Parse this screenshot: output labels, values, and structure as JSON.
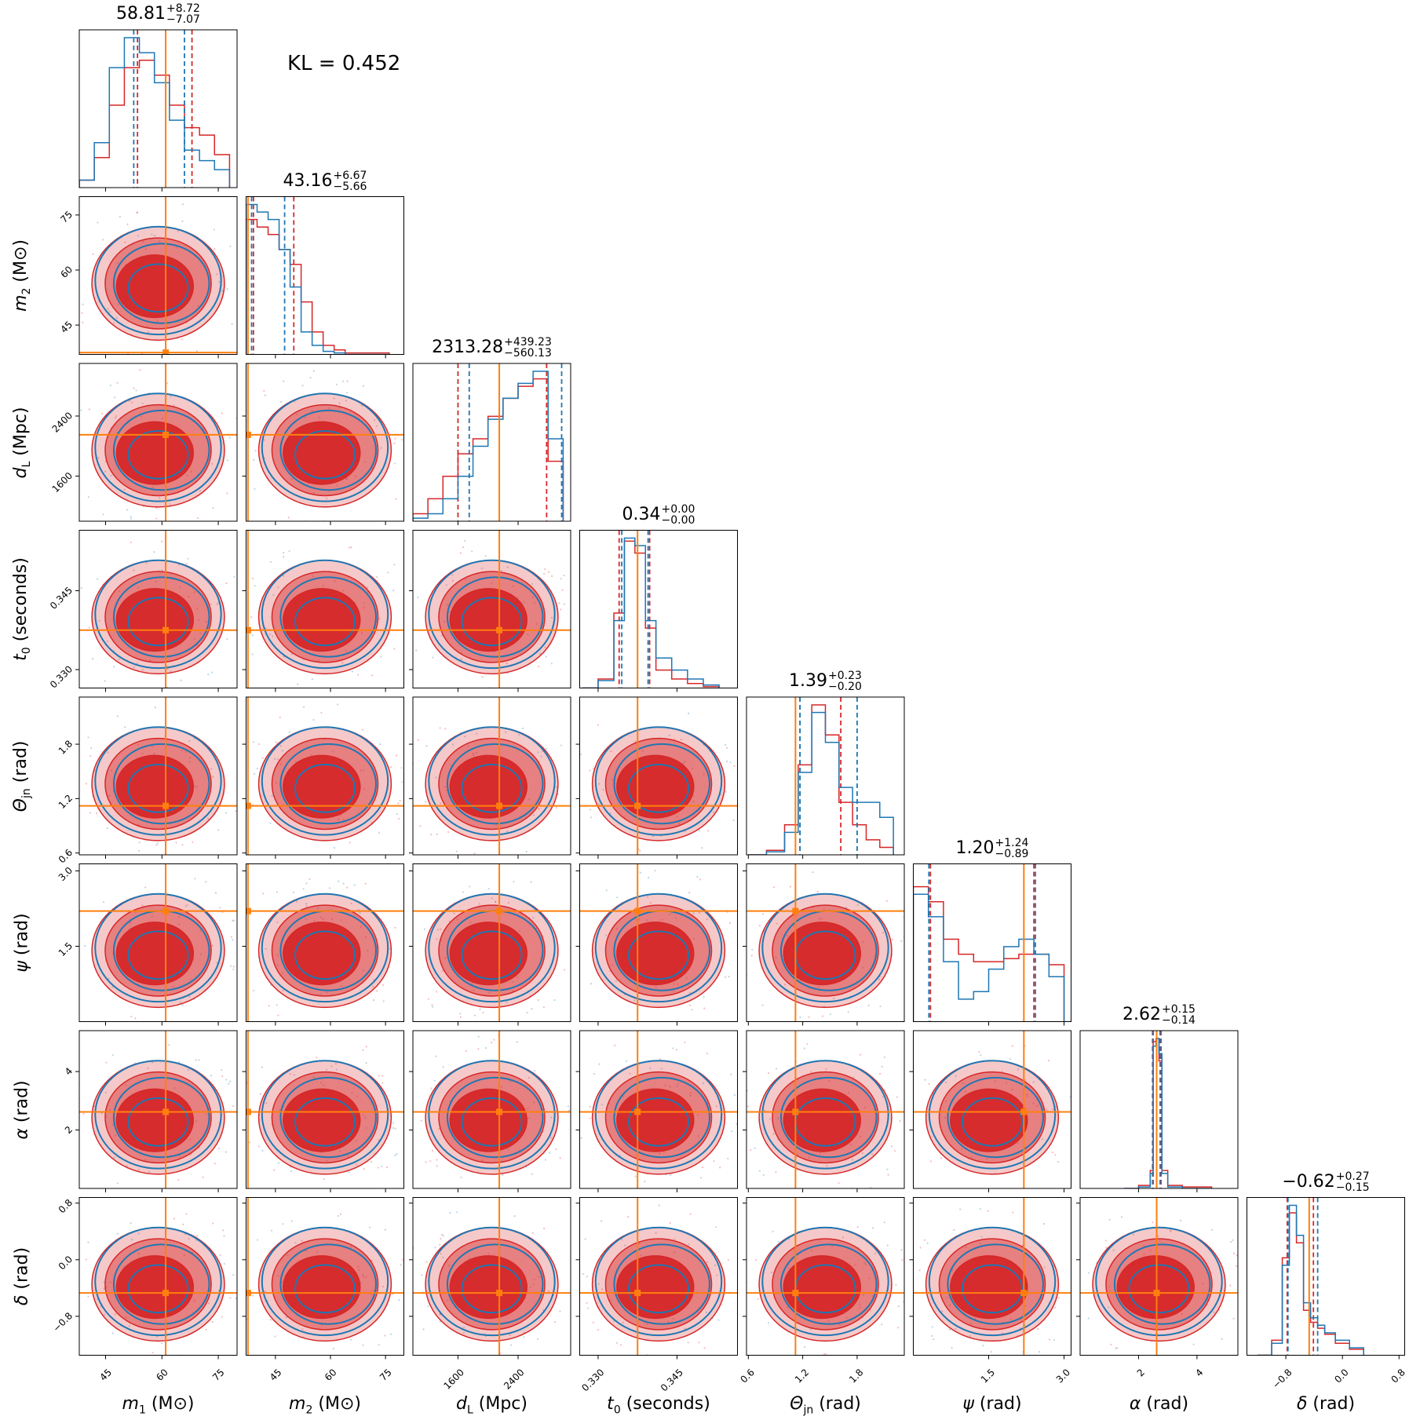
{
  "kl_text": "KL = 0.452",
  "colors": {
    "blue": "#1f77b4",
    "red": "#d62728",
    "truth": "#ff7f0e",
    "axes": "#000000"
  },
  "parameters": [
    {
      "key": "m1",
      "label_main": "m",
      "label_sub": "1",
      "label_unit": "(M⊙)",
      "range": [
        38,
        80
      ],
      "ticks": [
        45,
        60,
        75
      ],
      "tick_labels": [
        "45",
        "60",
        "75"
      ],
      "truth": 61,
      "title_value": "58.81",
      "title_plus": "+8.72",
      "title_minus": "−7.07"
    },
    {
      "key": "m2",
      "label_main": "m",
      "label_sub": "2",
      "label_unit": "(M⊙)",
      "range": [
        37,
        80
      ],
      "ticks": [
        45,
        60,
        75
      ],
      "tick_labels": [
        "45",
        "60",
        "75"
      ],
      "truth": 37.5,
      "title_value": "43.16",
      "title_plus": "+6.67",
      "title_minus": "−5.66"
    },
    {
      "key": "dL",
      "label_main": "d",
      "label_sub": "L",
      "label_unit": "(Mpc)",
      "range": [
        1000,
        3100
      ],
      "ticks": [
        1600,
        2400
      ],
      "tick_labels": [
        "1600",
        "2400"
      ],
      "truth": 2150,
      "title_value": "2313.28",
      "title_plus": "+439.23",
      "title_minus": "−560.13"
    },
    {
      "key": "t0",
      "label_main": "t",
      "label_sub": "0",
      "label_unit": "(seconds)",
      "range": [
        0.3265,
        0.3565
      ],
      "ticks": [
        0.33,
        0.345
      ],
      "tick_labels": [
        "0.330",
        "0.345"
      ],
      "truth": 0.3375,
      "title_value": "0.34",
      "title_plus": "+0.00",
      "title_minus": "−0.00"
    },
    {
      "key": "theta_jn",
      "label_main": "Θ",
      "label_sub": "jn",
      "label_unit": "(rad)",
      "range": [
        0.58,
        2.32
      ],
      "ticks": [
        0.6,
        1.2,
        1.8
      ],
      "tick_labels": [
        "0.6",
        "1.2",
        "1.8"
      ],
      "truth": 1.12,
      "title_value": "1.39",
      "title_plus": "+0.23",
      "title_minus": "−0.20"
    },
    {
      "key": "psi",
      "label_main": "ψ",
      "label_sub": "",
      "label_unit": "(rad)",
      "range": [
        0.0,
        3.14
      ],
      "ticks": [
        1.5,
        3.0
      ],
      "tick_labels": [
        "1.5",
        "3.0"
      ],
      "truth": 2.2,
      "title_value": "1.20",
      "title_plus": "+1.24",
      "title_minus": "−0.89"
    },
    {
      "key": "alpha",
      "label_main": "α",
      "label_sub": "",
      "label_unit": "(rad)",
      "range": [
        0.0,
        5.4
      ],
      "ticks": [
        2,
        4
      ],
      "tick_labels": [
        "2",
        "4"
      ],
      "truth": 2.62,
      "title_value": "2.62",
      "title_plus": "+0.15",
      "title_minus": "−0.14"
    },
    {
      "key": "delta",
      "label_main": "δ",
      "label_sub": "",
      "label_unit": "(rad)",
      "range": [
        -1.35,
        0.88
      ],
      "ticks": [
        -0.8,
        0.0,
        0.8
      ],
      "tick_labels": [
        "−0.8",
        "0.0",
        "0.8"
      ],
      "truth": -0.47,
      "title_value": "−0.62",
      "title_plus": "+0.27",
      "title_minus": "−0.15"
    }
  ],
  "chart_data": {
    "type": "corner",
    "series": [
      {
        "name": "",
        "color": "#1f77b4"
      },
      {
        "name": "",
        "color": "#d62728"
      }
    ],
    "truth_color": "#ff7f0e",
    "histograms": [
      {
        "param": "m1",
        "bins": [
          38,
          42,
          46,
          50,
          54,
          58,
          62,
          66,
          70,
          74,
          78
        ],
        "blue": [
          0.05,
          0.3,
          0.8,
          1.0,
          0.9,
          0.7,
          0.45,
          0.25,
          0.18,
          0.12,
          0.1
        ],
        "red": [
          0.05,
          0.2,
          0.55,
          0.8,
          0.85,
          0.75,
          0.55,
          0.4,
          0.35,
          0.22,
          0.15
        ],
        "blue_q": [
          52.5,
          66
        ],
        "red_q": [
          53.5,
          68
        ]
      },
      {
        "param": "m2",
        "bins": [
          37,
          40,
          43,
          46,
          49,
          52,
          55,
          58,
          61,
          64,
          70,
          76
        ],
        "blue": [
          1.0,
          0.95,
          0.9,
          0.7,
          0.45,
          0.15,
          0.06,
          0.02,
          0.01,
          0.0,
          0.0,
          0.0
        ],
        "red": [
          0.9,
          0.85,
          0.8,
          0.7,
          0.6,
          0.35,
          0.15,
          0.06,
          0.03,
          0.01,
          0.01,
          0.0
        ],
        "blue_q": [
          38.5,
          47.5
        ],
        "red_q": [
          39,
          50
        ]
      },
      {
        "param": "dL",
        "bins": [
          1000,
          1200,
          1400,
          1600,
          1800,
          2000,
          2200,
          2400,
          2600,
          2800,
          3000
        ],
        "blue": [
          0.02,
          0.05,
          0.15,
          0.3,
          0.5,
          0.68,
          0.82,
          0.92,
          1.0,
          0.55,
          0.0
        ],
        "red": [
          0.05,
          0.15,
          0.3,
          0.45,
          0.55,
          0.7,
          0.82,
          0.9,
          0.95,
          0.4,
          0.0
        ],
        "blue_q": [
          1750,
          2980
        ],
        "red_q": [
          1600,
          2780
        ]
      },
      {
        "param": "t0",
        "bins": [
          0.327,
          0.33,
          0.333,
          0.335,
          0.337,
          0.339,
          0.341,
          0.344,
          0.347,
          0.35,
          0.353
        ],
        "blue": [
          0.0,
          0.05,
          0.45,
          1.0,
          0.95,
          0.45,
          0.2,
          0.12,
          0.06,
          0.02,
          0.0
        ],
        "red": [
          0.0,
          0.06,
          0.5,
          0.98,
          0.9,
          0.4,
          0.12,
          0.06,
          0.03,
          0.01,
          0.0
        ],
        "blue_q": [
          0.3345,
          0.3395
        ],
        "red_q": [
          0.334,
          0.3398
        ]
      },
      {
        "param": "theta_jn",
        "bins": [
          0.6,
          0.8,
          1.0,
          1.15,
          1.3,
          1.45,
          1.6,
          1.75,
          1.9,
          2.05,
          2.2
        ],
        "blue": [
          0.0,
          0.02,
          0.15,
          0.55,
          0.95,
          0.75,
          0.45,
          0.35,
          0.35,
          0.25,
          0.05
        ],
        "red": [
          0.0,
          0.03,
          0.2,
          0.6,
          1.0,
          0.8,
          0.35,
          0.2,
          0.1,
          0.05,
          0.02
        ],
        "blue_q": [
          1.17,
          1.8
        ],
        "red_q": [
          1.17,
          1.62
        ]
      },
      {
        "param": "psi",
        "bins": [
          0.0,
          0.3,
          0.6,
          0.9,
          1.2,
          1.5,
          1.8,
          2.1,
          2.4,
          2.7,
          3.0
        ],
        "blue": [
          0.85,
          0.7,
          0.4,
          0.15,
          0.2,
          0.35,
          0.5,
          0.55,
          0.45,
          0.3,
          0.45
        ],
        "red": [
          0.9,
          0.8,
          0.55,
          0.45,
          0.4,
          0.4,
          0.42,
          0.45,
          0.45,
          0.38,
          0.35
        ],
        "blue_q": [
          0.31,
          2.43
        ],
        "red_q": [
          0.34,
          2.4
        ]
      },
      {
        "param": "alpha",
        "bins": [
          1.5,
          2.0,
          2.4,
          2.5,
          2.6,
          2.7,
          2.8,
          3.0,
          3.5,
          4.5
        ],
        "blue": [
          0.0,
          0.01,
          0.1,
          0.95,
          1.0,
          0.9,
          0.1,
          0.01,
          0.0,
          0.0
        ],
        "red": [
          0.0,
          0.02,
          0.12,
          0.98,
          1.0,
          0.85,
          0.12,
          0.02,
          0.01,
          0.0
        ],
        "blue_q": [
          2.5,
          2.77
        ],
        "red_q": [
          2.48,
          2.74
        ]
      },
      {
        "param": "delta",
        "bins": [
          -1.2,
          -1.0,
          -0.85,
          -0.75,
          -0.65,
          -0.55,
          -0.45,
          -0.35,
          -0.25,
          -0.1,
          0.1,
          0.3
        ],
        "blue": [
          0.0,
          0.08,
          0.6,
          1.0,
          0.8,
          0.35,
          0.25,
          0.2,
          0.15,
          0.1,
          0.05,
          0.0
        ],
        "red": [
          0.0,
          0.1,
          0.65,
          0.95,
          0.75,
          0.3,
          0.22,
          0.18,
          0.14,
          0.08,
          0.04,
          0.0
        ],
        "blue_q": [
          -0.77,
          -0.35
        ],
        "red_q": [
          -0.78,
          -0.41
        ]
      }
    ]
  }
}
